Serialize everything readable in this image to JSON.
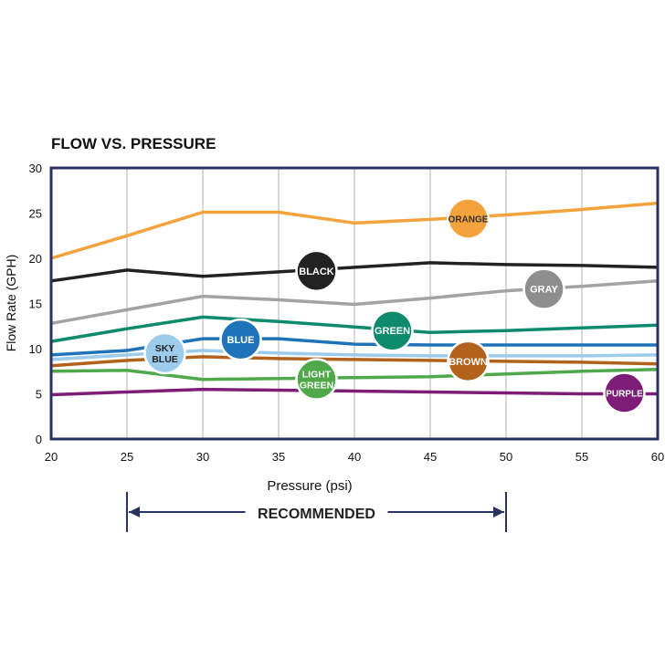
{
  "chart_data": {
    "type": "line",
    "title": "FLOW VS. PRESSURE",
    "xlabel": "Pressure (psi)",
    "ylabel": "Flow Rate (GPH)",
    "xlim": [
      20,
      60
    ],
    "ylim": [
      0,
      30
    ],
    "x_ticks": [
      "20",
      "25",
      "30",
      "35",
      "40",
      "45",
      "50",
      "55",
      "60"
    ],
    "y_ticks": [
      "0",
      "5",
      "10",
      "15",
      "20",
      "25",
      "30"
    ],
    "grid": "vertical",
    "series": [
      {
        "name": "ORANGE",
        "color": "#F4A23C",
        "x": [
          20,
          25,
          30,
          35,
          40,
          45,
          50,
          55,
          60
        ],
        "y": [
          20,
          22.5,
          25.1,
          25.1,
          23.9,
          24.3,
          24.8,
          25.4,
          26.1
        ],
        "label": [
          "ORANGE"
        ],
        "label_at": [
          47.5,
          24.4
        ],
        "label_color": "#F4A23C",
        "label_text_color": "#333333"
      },
      {
        "name": "BLACK",
        "color": "#222222",
        "x": [
          20,
          25,
          30,
          35,
          40,
          45,
          50,
          55,
          60
        ],
        "y": [
          17.5,
          18.7,
          18.0,
          18.5,
          19.0,
          19.5,
          19.3,
          19.2,
          19.0
        ],
        "label": [
          "BLACK"
        ],
        "label_at": [
          37.5,
          18.6
        ],
        "label_color": "#222222",
        "label_text_color": "#ffffff"
      },
      {
        "name": "GRAY",
        "color": "#A3A3A3",
        "x": [
          20,
          25,
          30,
          35,
          40,
          45,
          50,
          55,
          60
        ],
        "y": [
          12.8,
          14.3,
          15.8,
          15.4,
          14.9,
          15.6,
          16.4,
          16.9,
          17.5
        ],
        "label": [
          "GRAY"
        ],
        "label_at": [
          52.5,
          16.6
        ],
        "label_color": "#8E8E8E",
        "label_text_color": "#ffffff"
      },
      {
        "name": "GREEN",
        "color": "#0E8A6C",
        "x": [
          20,
          25,
          30,
          35,
          40,
          45,
          50,
          55,
          60
        ],
        "y": [
          10.8,
          12.2,
          13.5,
          13.0,
          12.4,
          11.8,
          12.0,
          12.3,
          12.6
        ],
        "label": [
          "GREEN"
        ],
        "label_at": [
          42.5,
          12.0
        ],
        "label_color": "#0E8A6C",
        "label_text_color": "#ffffff"
      },
      {
        "name": "BLUE",
        "color": "#1F73B8",
        "x": [
          20,
          25,
          30,
          35,
          40,
          45,
          50,
          55,
          60
        ],
        "y": [
          9.3,
          9.8,
          11.1,
          11.1,
          10.5,
          10.4,
          10.4,
          10.4,
          10.4
        ],
        "label": [
          "BLUE"
        ],
        "label_at": [
          32.5,
          11.0
        ],
        "label_color": "#1F73B8",
        "label_text_color": "#ffffff"
      },
      {
        "name": "SKY BLUE",
        "color": "#9CCBEB",
        "x": [
          20,
          25,
          30,
          35,
          40,
          45,
          50,
          55,
          60
        ],
        "y": [
          8.8,
          9.3,
          9.8,
          9.5,
          9.3,
          9.2,
          9.2,
          9.2,
          9.3
        ],
        "label": [
          "SKY",
          "BLUE"
        ],
        "label_at": [
          27.5,
          9.5
        ],
        "label_color": "#9CCBEB",
        "label_text_color": "#222222"
      },
      {
        "name": "BROWN",
        "color": "#B3621E",
        "x": [
          20,
          25,
          30,
          35,
          40,
          45,
          50,
          55,
          60
        ],
        "y": [
          8.1,
          8.7,
          9.1,
          8.9,
          8.8,
          8.7,
          8.6,
          8.5,
          8.3
        ],
        "label": [
          "BROWN"
        ],
        "label_at": [
          47.5,
          8.6
        ],
        "label_color": "#B3621E",
        "label_text_color": "#ffffff"
      },
      {
        "name": "LIGHT GREEN",
        "color": "#4FA84A",
        "x": [
          20,
          25,
          30,
          35,
          40,
          45,
          50,
          55,
          60
        ],
        "y": [
          7.5,
          7.6,
          6.6,
          6.7,
          6.8,
          6.9,
          7.2,
          7.5,
          7.7
        ],
        "label": [
          "LIGHT",
          "GREEN"
        ],
        "label_at": [
          37.5,
          6.6
        ],
        "label_color": "#4FA84A",
        "label_text_color": "#ffffff"
      },
      {
        "name": "PURPLE",
        "color": "#7D1D77",
        "x": [
          20,
          25,
          30,
          35,
          40,
          45,
          50,
          55,
          60
        ],
        "y": [
          4.9,
          5.2,
          5.5,
          5.4,
          5.3,
          5.2,
          5.1,
          5.0,
          5.0
        ],
        "label": [
          "PURPLE"
        ],
        "label_at": [
          57.8,
          5.1
        ],
        "label_color": "#7D1D77",
        "label_text_color": "#ffffff"
      }
    ],
    "annotation": {
      "text": "RECOMMENDED",
      "x_range": [
        25,
        50
      ],
      "color": "#2A3262"
    },
    "frame_color": "#2A3262",
    "grid_color": "#B0B0B0"
  }
}
